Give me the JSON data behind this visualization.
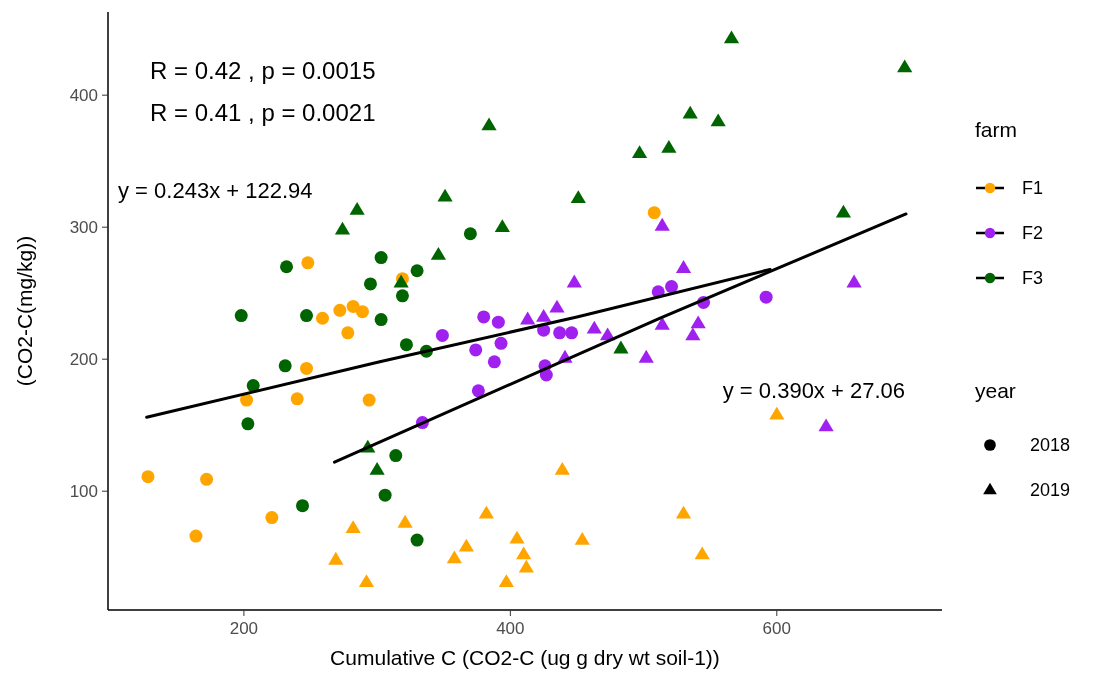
{
  "chart_data": {
    "type": "scatter",
    "xlabel": "Cumulative C (CO2-C (ug g dry wt soil-1))",
    "ylabel": "(CO2-C(mg/kg))",
    "legend_title": "farm",
    "legend": "right",
    "grid": false,
    "xlim": [
      98,
      724
    ],
    "xticks": [
      200,
      400,
      600
    ],
    "ylim": [
      10,
      463
    ],
    "yticks": [
      100,
      200,
      300,
      400
    ],
    "series": [
      {
        "name": "F1",
        "color": "#ffa500",
        "marker": "circle",
        "x": [
          128,
          164,
          172,
          221,
          202,
          240,
          294,
          247,
          248,
          259,
          272,
          282,
          289,
          278,
          319,
          508
        ],
        "values": [
          111,
          66,
          109,
          80,
          169,
          170,
          169,
          193,
          273,
          231,
          237,
          240,
          236,
          220,
          261,
          311
        ]
      },
      {
        "color": "#ffa500",
        "marker": "triangle",
        "x": [
          282,
          269,
          292,
          321,
          358,
          367,
          382,
          405,
          410,
          412,
          397,
          439,
          454,
          530,
          544,
          600
        ],
        "values": [
          72,
          48,
          31,
          76,
          49,
          58,
          83,
          64,
          52,
          42,
          31,
          116,
          63,
          83,
          52,
          158
        ]
      },
      {
        "name": "F2",
        "color": "#a020f0",
        "marker": "circle",
        "x": [
          349,
          380,
          391,
          374,
          393,
          388,
          425,
          437,
          446,
          426,
          511,
          376,
          334,
          427,
          592,
          545,
          521
        ],
        "values": [
          218,
          232,
          228,
          207,
          212,
          198,
          222,
          220,
          220,
          195,
          251,
          176,
          152,
          188,
          247,
          243,
          255
        ]
      },
      {
        "color": "#a020f0",
        "marker": "triangle",
        "x": [
          448,
          435,
          413,
          425,
          463,
          473,
          441,
          502,
          514,
          530,
          658,
          541,
          537,
          514,
          637
        ],
        "values": [
          258,
          239,
          230,
          232,
          223,
          218,
          201,
          201,
          301,
          269,
          258,
          227,
          218,
          226,
          149
        ]
      },
      {
        "name": "F3",
        "color": "#006400",
        "marker": "circle",
        "x": [
          232,
          198,
          247,
          303,
          295,
          303,
          231,
          207,
          203,
          244,
          306,
          330,
          319,
          370,
          322,
          337,
          314,
          330
        ],
        "values": [
          270,
          233,
          233,
          277,
          257,
          230,
          195,
          180,
          151,
          89,
          97,
          267,
          248,
          295,
          211,
          206,
          127,
          63
        ]
      },
      {
        "color": "#006400",
        "marker": "triangle",
        "x": [
          285,
          274,
          351,
          451,
          394,
          346,
          318,
          483,
          384,
          497,
          519,
          535,
          556,
          566,
          696,
          650,
          293,
          300
        ],
        "values": [
          313,
          298,
          323,
          322,
          300,
          279,
          258,
          208,
          377,
          356,
          360,
          386,
          380,
          443,
          421,
          311,
          133,
          116
        ]
      },
      {
        "type": "line",
        "color": "#000000",
        "x": [
          127,
          302,
          450,
          595
        ],
        "values": [
          156,
          198,
          232,
          268
        ]
      },
      {
        "type": "line",
        "color": "#000000",
        "x": [
          268,
          512,
          697
        ],
        "values": [
          122,
          231,
          310
        ]
      }
    ],
    "annotations": [
      "R = 0.42 , p = 0.0015",
      "R = 0.41 , p = 0.0021",
      "y = 0.243x + 122.94",
      "y = 0.390x + 27.06",
      "year",
      "2018",
      "2019"
    ]
  }
}
